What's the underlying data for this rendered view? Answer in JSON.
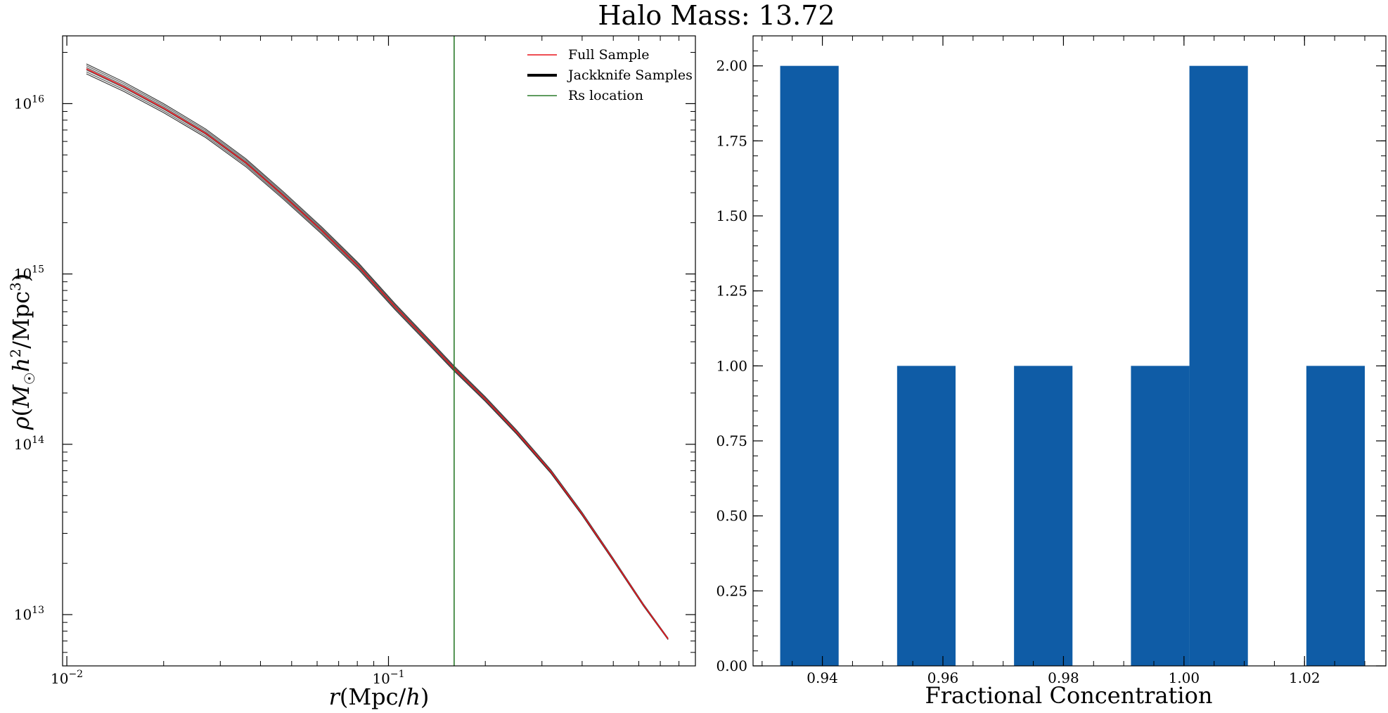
{
  "figure": {
    "title": "Halo Mass: 13.72"
  },
  "chart_data": [
    {
      "type": "line",
      "xscale": "log",
      "yscale": "log",
      "xlabel": "r(Mpc/h)",
      "ylabel": "ρ(M☉h²/Mpc³)",
      "xlim": [
        0.0097,
        0.9
      ],
      "ylim": [
        5000000000000,
        25000000000000000
      ],
      "xticks": [
        {
          "value": 0.01,
          "base": "10",
          "exp": "−2"
        },
        {
          "value": 0.1,
          "base": "10",
          "exp": "−1"
        }
      ],
      "yticks": [
        {
          "value": 10000000000000,
          "base": "10",
          "exp": "13"
        },
        {
          "value": 100000000000000,
          "base": "10",
          "exp": "14"
        },
        {
          "value": 1000000000000000,
          "base": "10",
          "exp": "15"
        },
        {
          "value": 10000000000000000,
          "base": "10",
          "exp": "16"
        }
      ],
      "legend": {
        "placement": "top-right",
        "entries": [
          {
            "label": "Full Sample",
            "color": "#e8141c",
            "width": 1.6
          },
          {
            "label": "Jackknife Samples",
            "color": "#000000",
            "width": 4
          },
          {
            "label": "Rs location",
            "color": "#2a7a2a",
            "width": 1.6
          }
        ]
      },
      "full_sample": {
        "name": "Full Sample",
        "color": "#e8141c",
        "x": [
          0.0115,
          0.015,
          0.02,
          0.027,
          0.036,
          0.047,
          0.062,
          0.081,
          0.105,
          0.135,
          0.16,
          0.2,
          0.25,
          0.32,
          0.4,
          0.5,
          0.62,
          0.74
        ],
        "y": [
          16000000000000000,
          12600000000000000,
          9400000000000000,
          6700000000000000,
          4500000000000000,
          2900000000000000,
          1800000000000000,
          1100000000000000,
          640000000000000,
          390000000000000,
          278000000000000,
          184000000000000,
          118000000000000,
          69000000000000,
          39000000000000,
          21000000000000,
          11400000000000,
          7200000000000
        ]
      },
      "jackknife_samples": {
        "name": "Jackknife Samples",
        "color": "#000000",
        "scale_factors": [
          1.07,
          1.045,
          1.02,
          0.985,
          0.96,
          0.935
        ]
      },
      "rs_location": {
        "name": "Rs location",
        "color": "#2a7a2a",
        "x": 0.16
      }
    },
    {
      "type": "bar",
      "histogram": true,
      "xlabel": "Fractional Concentration",
      "ylabel": "",
      "xlim": [
        0.9285,
        1.0335
      ],
      "ylim": [
        0,
        2.1
      ],
      "color": "#0f5ca6",
      "xticks": [
        "0.94",
        "0.96",
        "0.98",
        "1.00",
        "1.02"
      ],
      "yticks": [
        "0.00",
        "0.25",
        "0.50",
        "0.75",
        "1.00",
        "1.25",
        "1.50",
        "1.75",
        "2.00"
      ],
      "bins": [
        {
          "x0": 0.933,
          "x1": 0.9427,
          "count": 2
        },
        {
          "x0": 0.9524,
          "x1": 0.9621,
          "count": 1
        },
        {
          "x0": 0.9718,
          "x1": 0.9815,
          "count": 1
        },
        {
          "x0": 0.9912,
          "x1": 1.0009,
          "count": 1
        },
        {
          "x0": 1.0009,
          "x1": 1.0106,
          "count": 2
        },
        {
          "x0": 1.0203,
          "x1": 1.03,
          "count": 1
        }
      ]
    }
  ]
}
